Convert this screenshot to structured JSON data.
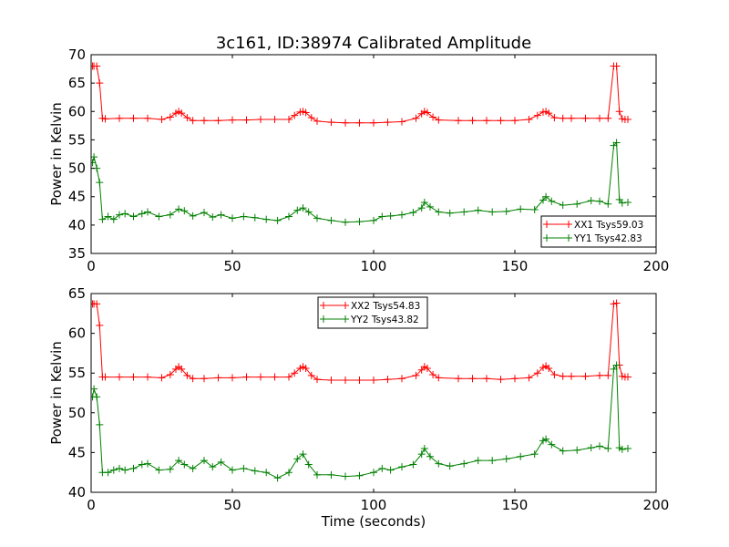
{
  "figure": {
    "title": "3c161, ID:38974 Calibrated Amplitude"
  },
  "chart_data": [
    {
      "type": "line",
      "panel": "top",
      "title": "3c161, ID:38974 Calibrated Amplitude",
      "xlabel": "",
      "ylabel": "Power in Kelvin",
      "xlim": [
        0,
        200
      ],
      "ylim": [
        35,
        70
      ],
      "xticks": [
        0,
        50,
        100,
        150,
        200
      ],
      "yticks": [
        35,
        40,
        45,
        50,
        55,
        60,
        65,
        70
      ],
      "grid": false,
      "legend_position": "lower-right",
      "series": [
        {
          "name": "XX1 Tsys59.03",
          "color": "#ff0000",
          "marker": "plus",
          "x": [
            0.5,
            1,
            2,
            3,
            4,
            5,
            10,
            15,
            20,
            25,
            28,
            30,
            31,
            32,
            34,
            36,
            40,
            45,
            50,
            55,
            60,
            65,
            70,
            72,
            74,
            75,
            76,
            78,
            80,
            85,
            90,
            95,
            100,
            105,
            110,
            115,
            117,
            118,
            119,
            121,
            123,
            130,
            135,
            140,
            145,
            150,
            155,
            158,
            160,
            161,
            162,
            164,
            167,
            170,
            175,
            180,
            183,
            185,
            186,
            187,
            188,
            189,
            190
          ],
          "y": [
            68,
            68,
            68,
            65,
            58.8,
            58.7,
            58.8,
            58.8,
            58.8,
            58.6,
            59,
            59.7,
            60,
            59.7,
            58.9,
            58.4,
            58.4,
            58.4,
            58.5,
            58.5,
            58.6,
            58.6,
            58.6,
            59.3,
            59.9,
            60,
            59.8,
            58.9,
            58.3,
            58.1,
            58,
            58,
            58,
            58.1,
            58.2,
            58.8,
            59.6,
            60,
            59.8,
            59,
            58.5,
            58.4,
            58.4,
            58.4,
            58.4,
            58.4,
            58.6,
            59.3,
            59.9,
            60,
            59.7,
            58.9,
            58.8,
            58.8,
            58.8,
            58.8,
            58.8,
            68,
            68,
            60,
            58.7,
            58.6,
            58.6
          ]
        },
        {
          "name": "YY1 Tsys42.83",
          "color": "#008000",
          "marker": "plus",
          "x": [
            0.5,
            1,
            2,
            3,
            4,
            6,
            8,
            10,
            12,
            15,
            18,
            20,
            24,
            28,
            31,
            33,
            36,
            40,
            43,
            46,
            50,
            54,
            58,
            62,
            66,
            70,
            73,
            75,
            77,
            80,
            85,
            90,
            95,
            100,
            103,
            106,
            110,
            114,
            117,
            118,
            120,
            123,
            127,
            132,
            137,
            142,
            147,
            152,
            157,
            160,
            161,
            163,
            167,
            172,
            177,
            180,
            183,
            185,
            186,
            187,
            188,
            190
          ],
          "y": [
            51,
            52,
            50,
            47.5,
            41,
            41.5,
            41,
            41.8,
            42,
            41.5,
            42,
            42.3,
            41.5,
            41.8,
            42.8,
            42.5,
            41.6,
            42.2,
            41.4,
            41.8,
            41.2,
            41.5,
            41.3,
            41,
            40.8,
            41.5,
            42.6,
            43,
            42.3,
            41.2,
            40.8,
            40.5,
            40.6,
            40.8,
            41.5,
            41.6,
            41.8,
            42.2,
            43,
            44,
            43.2,
            42.3,
            42.1,
            42.3,
            42.6,
            42.3,
            42.4,
            42.8,
            42.7,
            44.4,
            45,
            44.2,
            43.5,
            43.7,
            44.3,
            44.2,
            43.7,
            54,
            54.5,
            44.5,
            43.9,
            44
          ]
        }
      ]
    },
    {
      "type": "line",
      "panel": "bottom",
      "title": "",
      "xlabel": "Time (seconds)",
      "ylabel": "Power in Kelvin",
      "xlim": [
        0,
        200
      ],
      "ylim": [
        40,
        65
      ],
      "xticks": [
        0,
        50,
        100,
        150,
        200
      ],
      "yticks": [
        40,
        45,
        50,
        55,
        60,
        65
      ],
      "grid": false,
      "legend_position": "upper-center",
      "series": [
        {
          "name": "XX2 Tsys54.83",
          "color": "#ff0000",
          "marker": "plus",
          "x": [
            0.5,
            1,
            2,
            3,
            4,
            5,
            10,
            15,
            20,
            25,
            28,
            30,
            31,
            32,
            34,
            36,
            40,
            45,
            50,
            55,
            60,
            65,
            70,
            72,
            74,
            75,
            76,
            78,
            80,
            85,
            90,
            95,
            100,
            105,
            110,
            115,
            117,
            118,
            119,
            121,
            123,
            130,
            135,
            140,
            145,
            150,
            155,
            158,
            160,
            161,
            162,
            164,
            167,
            170,
            175,
            180,
            183,
            185,
            186,
            187,
            188,
            189,
            190
          ],
          "y": [
            63.7,
            63.7,
            63.7,
            61,
            54.5,
            54.5,
            54.5,
            54.5,
            54.5,
            54.4,
            54.8,
            55.5,
            55.8,
            55.5,
            54.7,
            54.3,
            54.3,
            54.4,
            54.4,
            54.5,
            54.5,
            54.5,
            54.5,
            55,
            55.6,
            55.8,
            55.6,
            54.7,
            54.2,
            54.1,
            54.1,
            54.1,
            54.1,
            54.2,
            54.3,
            54.7,
            55.4,
            55.8,
            55.6,
            54.8,
            54.4,
            54.3,
            54.3,
            54.3,
            54.2,
            54.3,
            54.4,
            55,
            55.7,
            55.9,
            55.6,
            54.8,
            54.6,
            54.6,
            54.6,
            54.7,
            54.7,
            63.7,
            63.8,
            56,
            54.6,
            54.5,
            54.5
          ]
        },
        {
          "name": "YY2 Tsys43.82",
          "color": "#008000",
          "marker": "plus",
          "x": [
            0.5,
            1,
            2,
            3,
            4,
            6,
            8,
            10,
            12,
            15,
            18,
            20,
            24,
            28,
            31,
            33,
            36,
            40,
            43,
            46,
            50,
            54,
            58,
            62,
            66,
            70,
            73,
            75,
            77,
            80,
            85,
            90,
            95,
            100,
            103,
            106,
            110,
            114,
            117,
            118,
            120,
            123,
            127,
            132,
            137,
            142,
            147,
            152,
            157,
            160,
            161,
            163,
            167,
            172,
            177,
            180,
            183,
            185,
            186,
            187,
            188,
            190
          ],
          "y": [
            52,
            53,
            52,
            48.5,
            42.5,
            42.5,
            42.8,
            43,
            42.8,
            43,
            43.5,
            43.6,
            42.8,
            42.9,
            44,
            43.5,
            43,
            44,
            43.2,
            43.8,
            42.8,
            43,
            42.7,
            42.5,
            41.8,
            42.5,
            44.2,
            44.8,
            43.5,
            42.2,
            42.2,
            42,
            42.1,
            42.5,
            43,
            42.8,
            43.2,
            43.5,
            44.8,
            45.5,
            44.5,
            43.6,
            43.3,
            43.6,
            44,
            44,
            44.2,
            44.5,
            44.8,
            46.5,
            46.7,
            46,
            45.2,
            45.3,
            45.6,
            45.8,
            45.5,
            55.5,
            56,
            45.6,
            45.4,
            45.5
          ]
        }
      ]
    }
  ]
}
